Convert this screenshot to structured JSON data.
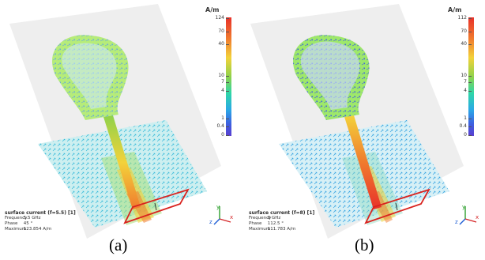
{
  "panels": [
    {
      "caption": "(a)",
      "colorbar": {
        "unit": "A/m",
        "max_label": "124",
        "ticks": [
          "70",
          "40",
          "10",
          "7",
          "4",
          "1",
          "0.4",
          "0"
        ]
      },
      "info": {
        "title": "surface current (f=5.5) [1]",
        "frequency_label": "Frequency",
        "frequency_value": "5.5 GHz",
        "phase_label": "Phase",
        "phase_value": "45 °",
        "maximum_label": "Maximum",
        "maximum_value": "123.854 A/m"
      }
    },
    {
      "caption": "(b)",
      "colorbar": {
        "unit": "A/m",
        "max_label": "112",
        "ticks": [
          "70",
          "40",
          "10",
          "7",
          "4",
          "1",
          "0.4",
          "0"
        ]
      },
      "info": {
        "title": "surface current (f=8) [1]",
        "frequency_label": "Frequency",
        "frequency_value": "8 GHz",
        "phase_label": "Phase",
        "phase_value": "112.5 °",
        "maximum_label": "Maximum",
        "maximum_value": "111.783 A/m"
      }
    }
  ],
  "axes_labels": {
    "x": "x",
    "y": "y",
    "z": "z"
  },
  "colors": {
    "background": "#ffffff",
    "substrate": "#eeeeee",
    "hot": "#e8312a",
    "warm": "#f3d23a",
    "mid": "#8fd24b",
    "cool": "#2fd6a8",
    "cold": "#3e5fe0",
    "port": "#d9231f"
  }
}
